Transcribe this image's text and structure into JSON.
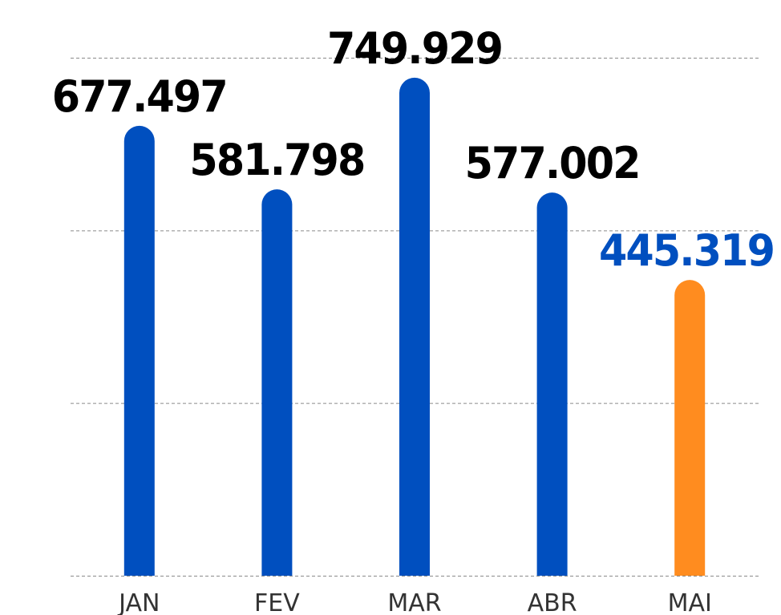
{
  "chart_data": {
    "type": "bar",
    "categories": [
      "JAN",
      "FEV",
      "MAR",
      "ABR",
      "MAI"
    ],
    "values": [
      677497,
      581798,
      749929,
      577002,
      445319
    ],
    "value_labels": [
      "677.497",
      "581.798",
      "749.929",
      "577.002",
      "445.319"
    ],
    "colors": [
      "#004fbf",
      "#004fbf",
      "#004fbf",
      "#004fbf",
      "#ff8c1f"
    ],
    "label_colors": [
      "#000000",
      "#000000",
      "#000000",
      "#000000",
      "#004fbf"
    ],
    "ylim": [
      0,
      780000
    ],
    "yticks": [
      0,
      260000,
      520000,
      780000
    ],
    "grid": true
  }
}
